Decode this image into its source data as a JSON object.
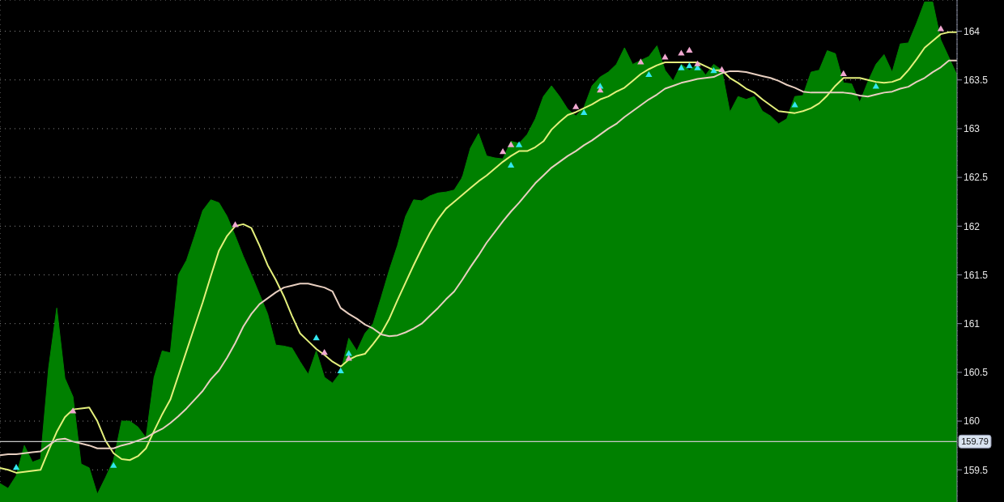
{
  "chart_data": {
    "type": "area",
    "ylim": [
      159.17,
      164.32
    ],
    "yticks": [
      159.5,
      160,
      160.5,
      161,
      161.5,
      162,
      162.5,
      163,
      163.5,
      164
    ],
    "categories": [
      null,
      null,
      null,
      null,
      null,
      null,
      null,
      null,
      null,
      null,
      null,
      null,
      null,
      null,
      null,
      null,
      null,
      null,
      null,
      null,
      null,
      null,
      null,
      null,
      null,
      null,
      null,
      null,
      null,
      null,
      null,
      null,
      null,
      null,
      null,
      null,
      null,
      null,
      null,
      null,
      null,
      null,
      null,
      null,
      null,
      null,
      null,
      null,
      null,
      null,
      null,
      null,
      null,
      null,
      null,
      null,
      null,
      null,
      null,
      null,
      null,
      null,
      null,
      null,
      null,
      null,
      null,
      null,
      null,
      null,
      null,
      null,
      null,
      null,
      null,
      null,
      null,
      null,
      null,
      null,
      null,
      null,
      null,
      null,
      null,
      null,
      null,
      null,
      null,
      null,
      null,
      null,
      null,
      null,
      null,
      null,
      null,
      null,
      null,
      null,
      null,
      null,
      null,
      null,
      null,
      null,
      null,
      null,
      null,
      null,
      null,
      null,
      null,
      null,
      null,
      null,
      null,
      null,
      null
    ],
    "tick_labels": "y",
    "grid": true,
    "ref_lines": [
      {
        "axis": "y",
        "value": 159.79,
        "label": "159.79",
        "color": "#c8c8c8"
      }
    ],
    "series": [
      {
        "color": "#008000",
        "values": [
          159.36,
          159.31,
          159.44,
          159.75,
          159.58,
          159.61,
          160.55,
          161.16,
          160.44,
          160.25,
          159.56,
          159.52,
          159.25,
          159.42,
          159.6,
          160.0,
          160.0,
          159.94,
          159.83,
          160.45,
          160.72,
          160.7,
          161.5,
          161.65,
          161.9,
          162.16,
          162.27,
          162.24,
          162.1,
          161.9,
          161.69,
          161.5,
          161.3,
          161.1,
          160.78,
          160.77,
          160.75,
          160.61,
          160.48,
          160.72,
          160.45,
          160.39,
          160.5,
          160.85,
          160.72,
          160.9,
          161.0,
          161.27,
          161.55,
          161.8,
          162.1,
          162.27,
          162.26,
          162.31,
          162.34,
          162.35,
          162.37,
          162.5,
          162.8,
          162.95,
          162.72,
          162.7,
          162.69,
          162.87,
          162.85,
          162.94,
          163.1,
          163.33,
          163.44,
          163.33,
          163.2,
          163.13,
          163.22,
          163.44,
          163.53,
          163.58,
          163.66,
          163.83,
          163.66,
          163.7,
          163.74,
          163.85,
          163.6,
          163.49,
          163.66,
          163.6,
          163.66,
          163.55,
          163.66,
          163.6,
          163.17,
          163.33,
          163.3,
          163.33,
          163.18,
          163.13,
          163.05,
          163.1,
          163.33,
          163.34,
          163.58,
          163.6,
          163.8,
          163.77,
          163.47,
          163.46,
          163.27,
          163.48,
          163.66,
          163.76,
          163.58,
          163.87,
          163.88,
          164.08,
          164.3,
          164.3,
          163.91,
          163.73,
          163.55
        ]
      },
      {
        "type": "line",
        "color": "#e4f07c",
        "values": [
          159.52,
          159.5,
          159.47,
          159.48,
          159.49,
          159.5,
          159.7,
          159.89,
          160.04,
          160.12,
          160.13,
          160.14,
          160.0,
          159.8,
          159.67,
          159.61,
          159.6,
          159.64,
          159.72,
          159.9,
          160.07,
          160.22,
          160.47,
          160.72,
          160.97,
          161.22,
          161.49,
          161.75,
          161.9,
          162.0,
          162.02,
          161.98,
          161.8,
          161.6,
          161.45,
          161.28,
          161.08,
          160.9,
          160.82,
          160.74,
          160.68,
          160.61,
          160.56,
          160.63,
          160.67,
          160.69,
          160.79,
          160.9,
          161.05,
          161.24,
          161.42,
          161.6,
          161.77,
          161.93,
          162.07,
          162.18,
          162.25,
          162.32,
          162.39,
          162.46,
          162.52,
          162.59,
          162.66,
          162.72,
          162.77,
          162.77,
          162.81,
          162.87,
          162.99,
          163.07,
          163.14,
          163.17,
          163.21,
          163.25,
          163.3,
          163.33,
          163.38,
          163.42,
          163.49,
          163.56,
          163.61,
          163.65,
          163.68,
          163.68,
          163.68,
          163.68,
          163.68,
          163.64,
          163.6,
          163.6,
          163.52,
          163.47,
          163.41,
          163.37,
          163.3,
          163.24,
          163.18,
          163.17,
          163.16,
          163.18,
          163.21,
          163.26,
          163.34,
          163.44,
          163.52,
          163.52,
          163.52,
          163.5,
          163.48,
          163.47,
          163.48,
          163.51,
          163.6,
          163.71,
          163.83,
          163.9,
          163.97,
          163.99,
          163.99
        ]
      },
      {
        "type": "line",
        "color": "#e8cfc0",
        "values": [
          159.65,
          159.66,
          159.66,
          159.67,
          159.68,
          159.69,
          159.75,
          159.81,
          159.82,
          159.79,
          159.77,
          159.75,
          159.72,
          159.72,
          159.72,
          159.75,
          159.77,
          159.8,
          159.83,
          159.88,
          159.92,
          159.98,
          160.05,
          160.13,
          160.22,
          160.31,
          160.43,
          160.52,
          160.65,
          160.8,
          160.97,
          161.1,
          161.2,
          161.26,
          161.32,
          161.37,
          161.39,
          161.41,
          161.41,
          161.39,
          161.37,
          161.33,
          161.16,
          161.1,
          161.05,
          160.99,
          160.95,
          160.89,
          160.87,
          160.88,
          160.91,
          160.95,
          161.0,
          161.08,
          161.16,
          161.25,
          161.33,
          161.45,
          161.58,
          161.7,
          161.83,
          161.94,
          162.05,
          162.15,
          162.24,
          162.34,
          162.44,
          162.52,
          162.6,
          162.66,
          162.72,
          162.77,
          162.83,
          162.88,
          162.94,
          163.0,
          163.05,
          163.12,
          163.18,
          163.24,
          163.3,
          163.35,
          163.41,
          163.44,
          163.47,
          163.49,
          163.51,
          163.52,
          163.53,
          163.57,
          163.59,
          163.59,
          163.58,
          163.56,
          163.54,
          163.52,
          163.49,
          163.45,
          163.42,
          163.38,
          163.37,
          163.37,
          163.37,
          163.37,
          163.37,
          163.36,
          163.34,
          163.33,
          163.35,
          163.37,
          163.38,
          163.41,
          163.43,
          163.48,
          163.52,
          163.58,
          163.63,
          163.7,
          163.7
        ]
      },
      {
        "type": "scatter",
        "color": "#33e6f0",
        "marker": "triangle",
        "values": [
          null,
          null,
          159.52,
          null,
          null,
          null,
          null,
          null,
          null,
          null,
          null,
          null,
          null,
          null,
          159.54,
          null,
          null,
          null,
          null,
          null,
          null,
          null,
          null,
          null,
          null,
          null,
          null,
          null,
          null,
          null,
          null,
          null,
          null,
          null,
          null,
          null,
          null,
          null,
          null,
          160.85,
          null,
          null,
          160.51,
          160.69,
          null,
          null,
          null,
          null,
          null,
          null,
          null,
          null,
          null,
          null,
          null,
          null,
          null,
          null,
          null,
          null,
          null,
          null,
          null,
          162.62,
          162.83,
          null,
          null,
          null,
          null,
          null,
          null,
          null,
          163.16,
          null,
          163.43,
          null,
          null,
          null,
          null,
          null,
          163.55,
          null,
          null,
          null,
          163.62,
          163.64,
          163.62,
          null,
          163.59,
          null,
          null,
          null,
          null,
          null,
          null,
          null,
          null,
          null,
          163.24,
          null,
          null,
          null,
          null,
          null,
          null,
          null,
          null,
          null,
          163.43,
          null,
          null,
          null,
          null,
          null,
          null,
          null,
          null,
          null,
          null
        ]
      },
      {
        "type": "scatter",
        "color": "#f0a8d0",
        "marker": "triangle",
        "values": [
          null,
          null,
          null,
          null,
          null,
          null,
          null,
          null,
          null,
          160.1,
          null,
          null,
          null,
          null,
          null,
          null,
          null,
          null,
          null,
          null,
          null,
          null,
          null,
          null,
          null,
          null,
          null,
          null,
          null,
          162.01,
          null,
          null,
          null,
          null,
          null,
          null,
          null,
          null,
          null,
          null,
          160.7,
          null,
          null,
          160.64,
          null,
          null,
          null,
          null,
          null,
          null,
          null,
          null,
          null,
          null,
          null,
          null,
          null,
          null,
          null,
          null,
          null,
          null,
          162.76,
          162.83,
          null,
          null,
          null,
          null,
          null,
          null,
          null,
          163.22,
          null,
          null,
          163.39,
          null,
          null,
          null,
          null,
          163.68,
          null,
          null,
          163.73,
          null,
          163.77,
          163.8,
          163.66,
          null,
          null,
          163.6,
          null,
          null,
          null,
          null,
          null,
          null,
          null,
          null,
          null,
          null,
          null,
          null,
          null,
          null,
          163.56,
          null,
          null,
          null,
          null,
          null,
          null,
          null,
          null,
          null,
          null,
          null,
          164.02,
          null,
          null
        ]
      }
    ]
  }
}
